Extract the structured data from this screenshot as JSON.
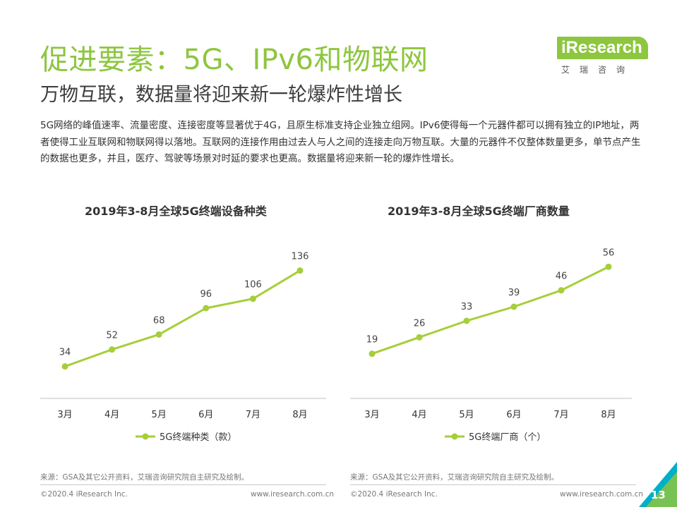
{
  "header": {
    "title": "促进要素：5G、IPv6和物联网",
    "subtitle": "万物互联，数据量将迎来新一轮爆炸性增长"
  },
  "logo": {
    "name": "iResearch",
    "sub": "艾瑞咨询"
  },
  "body_text": "5G网络的峰值速率、流量密度、连接密度等显著优于4G，且原生标准支持企业独立组网。IPv6使得每一个元器件都可以拥有独立的IP地址，两者使得工业互联网和物联网得以落地。互联网的连接作用由过去人与人之间的连接走向万物互联。大量的元器件不仅整体数量更多，单节点产生的数据也更多，并且，医疗、驾驶等场景对时延的要求也更高。数据量将迎来新一轮的爆炸性增长。",
  "colors": {
    "accent": "#8dc63f",
    "line": "#a6ce39",
    "teal": "#00b0c8"
  },
  "chart_data": [
    {
      "type": "line",
      "title": "2019年3-8月全球5G终端设备种类",
      "categories": [
        "3月",
        "4月",
        "5月",
        "6月",
        "7月",
        "8月"
      ],
      "series": [
        {
          "name": "5G终端种类（款）",
          "values": [
            34,
            52,
            68,
            96,
            106,
            136
          ]
        }
      ],
      "ylim": [
        0,
        150
      ],
      "grid": false,
      "legend": "bottom"
    },
    {
      "type": "line",
      "title": "2019年3-8月全球5G终端厂商数量",
      "categories": [
        "3月",
        "4月",
        "5月",
        "6月",
        "7月",
        "8月"
      ],
      "series": [
        {
          "name": "5G终端厂商（个）",
          "values": [
            19,
            26,
            33,
            39,
            46,
            56
          ]
        }
      ],
      "ylim": [
        0,
        60
      ],
      "grid": false,
      "legend": "bottom"
    }
  ],
  "sources": [
    "来源：GSA及其它公开资料，艾瑞咨询研究院自主研究及绘制。",
    "来源：GSA及其它公开资料，艾瑞咨询研究院自主研究及绘制。"
  ],
  "footer": {
    "copyright": "©2020.4 iResearch Inc.",
    "url": "www.iresearch.com.cn",
    "page": "13"
  }
}
